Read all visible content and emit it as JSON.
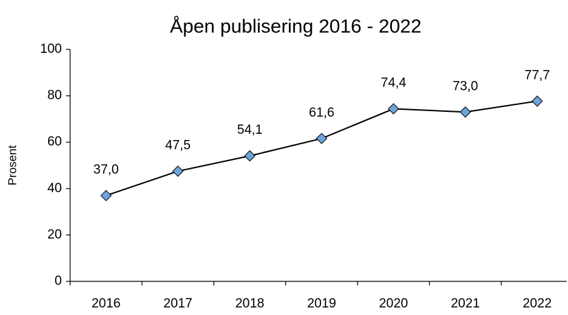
{
  "chart_data": {
    "type": "line",
    "title": "Åpen publisering 2016 - 2022",
    "y_label": "Prosent",
    "categories": [
      "2016",
      "2017",
      "2018",
      "2019",
      "2020",
      "2021",
      "2022"
    ],
    "series": [
      {
        "name": "Åpen publisering",
        "color": "#000000",
        "marker_color": "#6fa3dc",
        "values": [
          37.0,
          47.5,
          54.1,
          61.6,
          74.4,
          73.0,
          77.7
        ],
        "value_labels": [
          "37,0",
          "47,5",
          "54,1",
          "61,6",
          "74,4",
          "73,0",
          "77,7"
        ]
      }
    ],
    "ylim": [
      0,
      100
    ],
    "yticks": [
      0,
      20,
      40,
      60,
      80,
      100
    ],
    "grid": false,
    "legend": false
  }
}
